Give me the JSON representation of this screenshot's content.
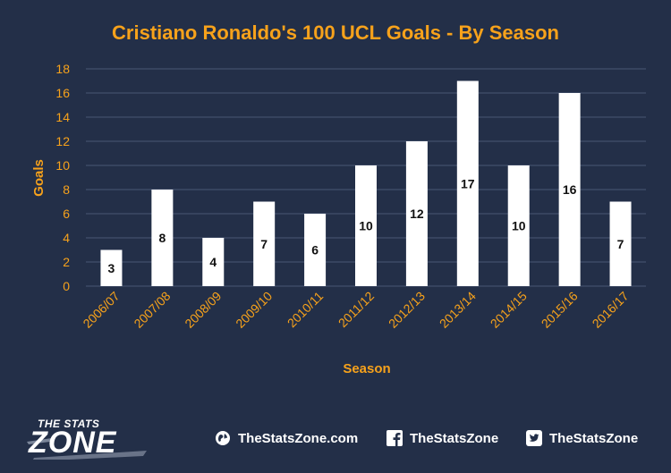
{
  "chart_data": {
    "type": "bar",
    "title": "Cristiano Ronaldo's 100 UCL Goals - By Season",
    "xlabel": "Season",
    "ylabel": "Goals",
    "categories": [
      "2006/07",
      "2007/08",
      "2008/09",
      "2009/10",
      "2010/11",
      "2011/12",
      "2012/13",
      "2013/14",
      "2014/15",
      "2015/16",
      "2016/17"
    ],
    "values": [
      3,
      8,
      4,
      7,
      6,
      10,
      12,
      17,
      10,
      16,
      7
    ],
    "ylim": [
      0,
      18
    ],
    "yticks": [
      0,
      2,
      4,
      6,
      8,
      10,
      12,
      14,
      16,
      18
    ],
    "grid": true,
    "colors": {
      "background": "#232f48",
      "bar": "#ffffff",
      "text_accent": "#f7a21b",
      "gridline": "#4a5775"
    }
  },
  "footer": {
    "logo_top": "THE STATS",
    "logo_main": "ZONE",
    "website_icon": "globe-icon",
    "website": "TheStatsZone.com",
    "facebook_icon": "facebook-icon",
    "facebook": "TheStatsZone",
    "twitter_icon": "twitter-icon",
    "twitter": "TheStatsZone"
  }
}
